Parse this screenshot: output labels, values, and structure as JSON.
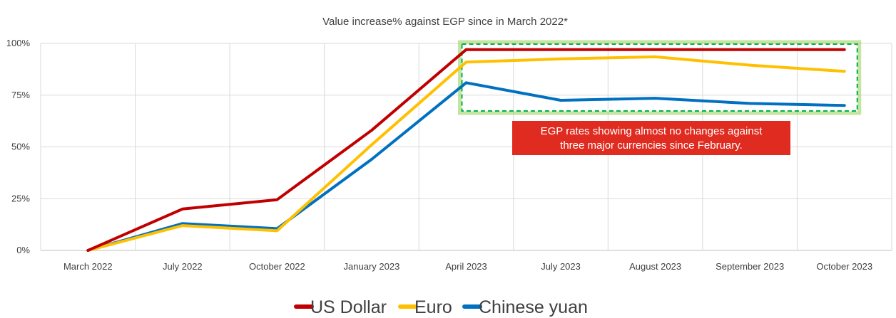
{
  "chart_data": {
    "type": "line",
    "title": "Value increase% against EGP since in March 2022*",
    "categories": [
      "March 2022",
      "July 2022",
      "October 2022",
      "January 2023",
      "April 2023",
      "July 2023",
      "August 2023",
      "September 2023",
      "October 2023"
    ],
    "yticks": [
      "0%",
      "25%",
      "50%",
      "75%",
      "100%"
    ],
    "ylim": [
      0,
      100
    ],
    "grid": true,
    "legend_position": "bottom",
    "series": [
      {
        "name": "US Dollar",
        "color": "#C00000",
        "values": [
          0,
          20,
          24.5,
          58,
          97,
          97,
          97,
          97,
          97
        ]
      },
      {
        "name": "Euro",
        "color": "#FFC000",
        "values": [
          0,
          12,
          9.5,
          51,
          91,
          92.5,
          93.5,
          89.5,
          86.5
        ]
      },
      {
        "name": "Chinese yuan",
        "color": "#0070C0",
        "values": [
          0,
          13,
          10.5,
          44,
          81,
          72.5,
          73.5,
          71,
          70
        ]
      }
    ],
    "annotation": {
      "text_lines": [
        "EGP rates showing almost no changes against",
        "three major currencies since February."
      ],
      "box_color": "#E02B20",
      "highlight_color": "#92D050",
      "highlight_range": {
        "x_from": "April 2023",
        "x_to": "October 2023",
        "y_from": 67,
        "y_to": 100
      }
    }
  }
}
